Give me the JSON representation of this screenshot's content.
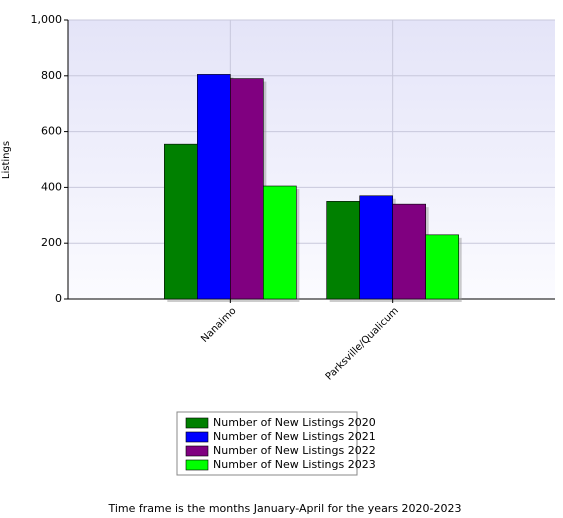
{
  "chart_data": {
    "type": "bar",
    "y_label": "Listings",
    "categories": [
      "Nanaimo",
      "Parksville/Qualicum"
    ],
    "series": [
      {
        "name": "Number of New Listings 2020",
        "color": "#008000",
        "values": [
          555,
          350
        ]
      },
      {
        "name": "Number of New Listings 2021",
        "color": "#0000ff",
        "values": [
          805,
          370
        ]
      },
      {
        "name": "Number of New Listings 2022",
        "color": "#800080",
        "values": [
          790,
          340
        ]
      },
      {
        "name": "Number of New Listings 2023",
        "color": "#00ff00",
        "values": [
          405,
          230
        ]
      }
    ],
    "ylim": [
      0,
      1000
    ],
    "yticks": [
      0,
      200,
      400,
      600,
      800,
      {
        "value": 1000,
        "label": "1,000"
      }
    ],
    "grid": true,
    "caption": "Time frame is the months January-April for the years 2020-2023"
  }
}
